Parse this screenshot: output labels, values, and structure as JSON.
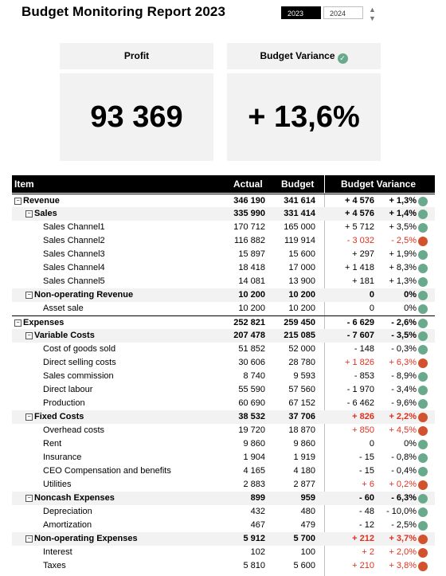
{
  "header": {
    "title": "Budget Monitoring Report 2023",
    "year_options": [
      "2023",
      "2024"
    ],
    "selected_year": "2023"
  },
  "kpis": {
    "profit_label": "Profit",
    "profit_value": "93 369",
    "variance_label": "Budget Variance",
    "variance_value": "+ 13,6%"
  },
  "table": {
    "headers": {
      "item": "Item",
      "actual": "Actual",
      "budget": "Budget",
      "variance": "Budget Variance"
    },
    "rows": [
      {
        "level": 0,
        "toggle": "⊟",
        "label": "Revenue",
        "actual": "346 190",
        "budget": "341 614",
        "var": "+ 4 576",
        "pct": "+ 1,3%",
        "status": "green"
      },
      {
        "level": 1,
        "toggle": "⊟",
        "label": "Sales",
        "actual": "335 990",
        "budget": "331 414",
        "var": "+ 4 576",
        "pct": "+ 1,4%",
        "status": "green"
      },
      {
        "level": 2,
        "label": "Sales Channel1",
        "actual": "170 712",
        "budget": "165 000",
        "var": "+ 5 712",
        "pct": "+ 3,5%",
        "status": "green"
      },
      {
        "level": 2,
        "label": "Sales Channel2",
        "actual": "116 882",
        "budget": "119 914",
        "var": "- 3 032",
        "pct": "- 2,5%",
        "status": "red",
        "red": true
      },
      {
        "level": 2,
        "label": "Sales Channel3",
        "actual": "15 897",
        "budget": "15 600",
        "var": "+ 297",
        "pct": "+ 1,9%",
        "status": "green"
      },
      {
        "level": 2,
        "label": "Sales Channel4",
        "actual": "18 418",
        "budget": "17 000",
        "var": "+ 1 418",
        "pct": "+ 8,3%",
        "status": "green"
      },
      {
        "level": 2,
        "label": "Sales Channel5",
        "actual": "14 081",
        "budget": "13 900",
        "var": "+ 181",
        "pct": "+ 1,3%",
        "status": "green"
      },
      {
        "level": 1,
        "toggle": "⊟",
        "label": "Non-operating Revenue",
        "actual": "10 200",
        "budget": "10 200",
        "var": "0",
        "pct": "0%",
        "status": "green"
      },
      {
        "level": 2,
        "label": "Asset sale",
        "actual": "10 200",
        "budget": "10 200",
        "var": "0",
        "pct": "0%",
        "status": "green"
      },
      {
        "level": 0,
        "toggle": "⊟",
        "label": "Expenses",
        "actual": "252 821",
        "budget": "259 450",
        "var": "- 6 629",
        "pct": "- 2,6%",
        "status": "green"
      },
      {
        "level": 1,
        "toggle": "⊟",
        "label": "Variable Costs",
        "actual": "207 478",
        "budget": "215 085",
        "var": "- 7 607",
        "pct": "- 3,5%",
        "status": "green"
      },
      {
        "level": 2,
        "label": "Cost of goods sold",
        "actual": "51 852",
        "budget": "52 000",
        "var": "- 148",
        "pct": "- 0,3%",
        "status": "green"
      },
      {
        "level": 2,
        "label": "Direct selling costs",
        "actual": "30 606",
        "budget": "28 780",
        "var": "+ 1 826",
        "pct": "+ 6,3%",
        "status": "red",
        "red": true
      },
      {
        "level": 2,
        "label": "Sales commission",
        "actual": "8 740",
        "budget": "9 593",
        "var": "- 853",
        "pct": "- 8,9%",
        "status": "green"
      },
      {
        "level": 2,
        "label": "Direct labour",
        "actual": "55 590",
        "budget": "57 560",
        "var": "- 1 970",
        "pct": "- 3,4%",
        "status": "green"
      },
      {
        "level": 2,
        "label": "Production",
        "actual": "60 690",
        "budget": "67 152",
        "var": "- 6 462",
        "pct": "- 9,6%",
        "status": "green"
      },
      {
        "level": 1,
        "toggle": "⊟",
        "label": "Fixed Costs",
        "actual": "38 532",
        "budget": "37 706",
        "var": "+ 826",
        "pct": "+ 2,2%",
        "status": "red",
        "red": true
      },
      {
        "level": 2,
        "label": "Overhead costs",
        "actual": "19 720",
        "budget": "18 870",
        "var": "+ 850",
        "pct": "+ 4,5%",
        "status": "red",
        "red": true
      },
      {
        "level": 2,
        "label": "Rent",
        "actual": "9 860",
        "budget": "9 860",
        "var": "0",
        "pct": "0%",
        "status": "green"
      },
      {
        "level": 2,
        "label": "Insurance",
        "actual": "1 904",
        "budget": "1 919",
        "var": "- 15",
        "pct": "- 0,8%",
        "status": "green"
      },
      {
        "level": 2,
        "label": "CEO Compensation and benefits",
        "actual": "4 165",
        "budget": "4 180",
        "var": "- 15",
        "pct": "- 0,4%",
        "status": "green"
      },
      {
        "level": 2,
        "label": "Utilities",
        "actual": "2 883",
        "budget": "2 877",
        "var": "+ 6",
        "pct": "+ 0,2%",
        "status": "red",
        "red": true
      },
      {
        "level": 1,
        "toggle": "⊟",
        "label": "Noncash Expenses",
        "actual": "899",
        "budget": "959",
        "var": "- 60",
        "pct": "- 6,3%",
        "status": "green"
      },
      {
        "level": 2,
        "label": "Depreciation",
        "actual": "432",
        "budget": "480",
        "var": "- 48",
        "pct": "- 10,0%",
        "status": "green"
      },
      {
        "level": 2,
        "label": "Amortization",
        "actual": "467",
        "budget": "479",
        "var": "- 12",
        "pct": "- 2,5%",
        "status": "green"
      },
      {
        "level": 1,
        "toggle": "⊟",
        "label": "Non-operating Expenses",
        "actual": "5 912",
        "budget": "5 700",
        "var": "+ 212",
        "pct": "+ 3,7%",
        "status": "red",
        "red": true
      },
      {
        "level": 2,
        "label": "Interest",
        "actual": "102",
        "budget": "100",
        "var": "+ 2",
        "pct": "+ 2,0%",
        "status": "red",
        "red": true
      },
      {
        "level": 2,
        "label": "Taxes",
        "actual": "5 810",
        "budget": "5 600",
        "var": "+ 210",
        "pct": "+ 3,8%",
        "status": "red",
        "red": true
      }
    ]
  },
  "colors": {
    "green": "#6aaa8c",
    "red": "#d2522e",
    "negative_text": "#e0301e"
  },
  "icons": {
    "check": "check-circle-icon",
    "spin_up": "chevron-up-icon",
    "spin_down": "chevron-down-icon",
    "toggle": "collapse-icon"
  }
}
